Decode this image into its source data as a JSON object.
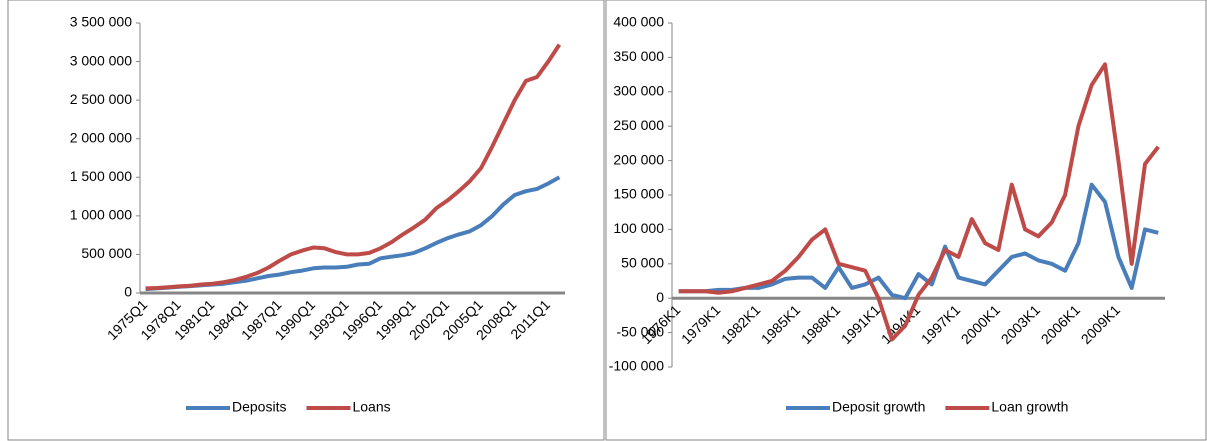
{
  "chart_data": [
    {
      "type": "line",
      "categories": [
        "1975Q1",
        null,
        null,
        "1978Q1",
        null,
        null,
        "1981Q1",
        null,
        null,
        "1984Q1",
        null,
        null,
        "1987Q1",
        null,
        null,
        "1990Q1",
        null,
        null,
        "1993Q1",
        null,
        null,
        "1996Q1",
        null,
        null,
        "1999Q1",
        null,
        null,
        "2002Q1",
        null,
        null,
        "2005Q1",
        null,
        null,
        "2008Q1",
        null,
        null,
        "2011Q1",
        null
      ],
      "series": [
        {
          "name": "Deposits",
          "color": "#4a7ebb",
          "values": [
            50000,
            60000,
            70000,
            80000,
            90000,
            100000,
            110000,
            120000,
            140000,
            160000,
            190000,
            220000,
            240000,
            270000,
            290000,
            320000,
            330000,
            330000,
            340000,
            370000,
            380000,
            450000,
            470000,
            490000,
            520000,
            580000,
            650000,
            710000,
            760000,
            800000,
            880000,
            1000000,
            1150000,
            1270000,
            1320000,
            1350000,
            1420000,
            1500000
          ]
        },
        {
          "name": "Loans",
          "color": "#be4b48",
          "values": [
            60000,
            65000,
            75000,
            85000,
            95000,
            110000,
            120000,
            140000,
            170000,
            210000,
            260000,
            330000,
            420000,
            500000,
            550000,
            590000,
            580000,
            530000,
            500000,
            500000,
            520000,
            580000,
            660000,
            760000,
            850000,
            950000,
            1100000,
            1200000,
            1320000,
            1450000,
            1620000,
            1900000,
            2200000,
            2500000,
            2750000,
            2800000,
            3000000,
            3220000
          ]
        }
      ],
      "ylim": [
        0,
        3500000
      ],
      "yticks": [
        0,
        {
          "value": 500000,
          "label": "500 000"
        },
        {
          "value": 1000000,
          "label": "1 000 000"
        },
        {
          "value": 1500000,
          "label": "1 500 000"
        },
        {
          "value": 2000000,
          "label": "2 000 000"
        },
        {
          "value": 2500000,
          "label": "2 500 000"
        },
        {
          "value": 3000000,
          "label": "3 000 000"
        },
        {
          "value": 3500000,
          "label": "3 500 000"
        }
      ],
      "legend": "bottom"
    },
    {
      "type": "line",
      "categories": [
        "1976K1",
        null,
        null,
        "1979K1",
        null,
        null,
        "1982K1",
        null,
        null,
        "1985K1",
        null,
        null,
        "1988K1",
        null,
        null,
        "1991K1",
        null,
        null,
        "1994K1",
        null,
        null,
        "1997K1",
        null,
        null,
        "2000K1",
        null,
        null,
        "2003K1",
        null,
        null,
        "2006K1",
        null,
        null,
        "2009K1",
        null,
        null,
        null
      ],
      "series": [
        {
          "name": "Deposit growth",
          "color": "#4a7ebb",
          "values": [
            10000,
            10000,
            10000,
            12000,
            12000,
            15000,
            15000,
            20000,
            28000,
            30000,
            30000,
            15000,
            45000,
            15000,
            20000,
            30000,
            5000,
            0,
            35000,
            20000,
            75000,
            30000,
            25000,
            20000,
            40000,
            60000,
            65000,
            55000,
            50000,
            40000,
            80000,
            165000,
            140000,
            60000,
            15000,
            100000,
            95000
          ]
        },
        {
          "name": "Loan growth",
          "color": "#be4b48",
          "values": [
            10000,
            10000,
            10000,
            8000,
            10000,
            15000,
            20000,
            25000,
            40000,
            60000,
            85000,
            100000,
            50000,
            45000,
            40000,
            0,
            -60000,
            -40000,
            5000,
            30000,
            70000,
            60000,
            115000,
            80000,
            70000,
            165000,
            100000,
            90000,
            110000,
            150000,
            250000,
            310000,
            340000,
            200000,
            50000,
            195000,
            220000
          ]
        }
      ],
      "ylim": [
        -100000,
        400000
      ],
      "yticks": [
        {
          "value": -100000,
          "label": "-100 000"
        },
        {
          "value": -50000,
          "label": "-50 000"
        },
        0,
        {
          "value": 50000,
          "label": "50 000"
        },
        {
          "value": 100000,
          "label": "100 000"
        },
        {
          "value": 150000,
          "label": "150 000"
        },
        {
          "value": 200000,
          "label": "200 000"
        },
        {
          "value": 250000,
          "label": "250 000"
        },
        {
          "value": 300000,
          "label": "300 000"
        },
        {
          "value": 350000,
          "label": "350 000"
        },
        {
          "value": 400000,
          "label": "400 000"
        }
      ],
      "legend": "bottom"
    }
  ]
}
